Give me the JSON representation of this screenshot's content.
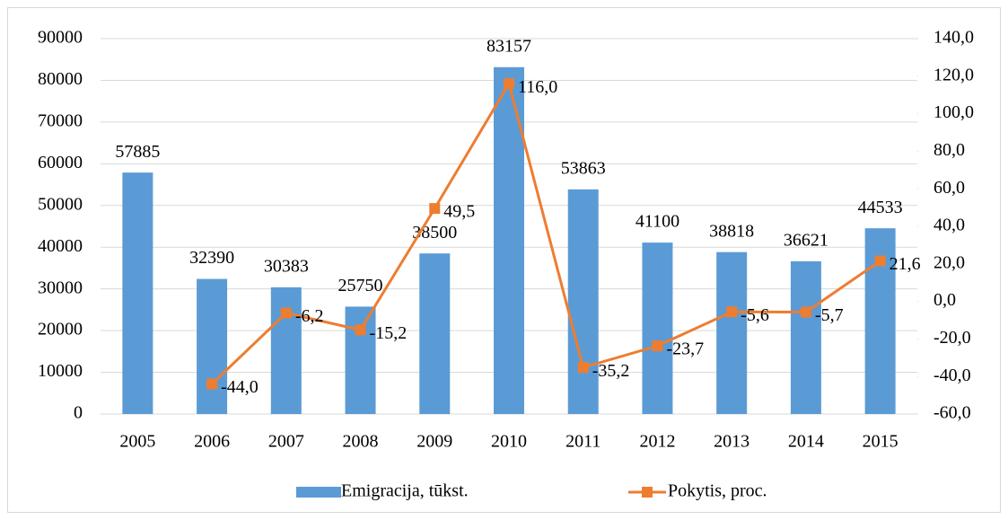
{
  "chart_data": {
    "type": "bar_line",
    "categories": [
      "2005",
      "2006",
      "2007",
      "2008",
      "2009",
      "2010",
      "2011",
      "2012",
      "2013",
      "2014",
      "2015"
    ],
    "series": [
      {
        "name": "Emigracija, tūkst.",
        "type": "bar",
        "color": "#5b9bd5",
        "values": [
          57885,
          32390,
          30383,
          25750,
          38500,
          83157,
          53863,
          41100,
          38818,
          36621,
          44533
        ]
      },
      {
        "name": "Pokytis, proc.",
        "type": "line",
        "axis": "y2",
        "color": "#ed7d31",
        "values": [
          null,
          -44.0,
          -6.2,
          -15.2,
          49.5,
          116.0,
          -35.2,
          -23.7,
          -5.6,
          -5.7,
          21.6
        ],
        "value_labels": [
          null,
          "-44,0",
          "-6,2",
          "-15,2",
          "49,5",
          "116,0",
          "-35,2",
          "-23,7",
          "-5,6",
          "-5,7",
          "21,6"
        ]
      }
    ],
    "ylim": [
      0,
      90000
    ],
    "yticks": [
      0,
      10000,
      20000,
      30000,
      40000,
      50000,
      60000,
      70000,
      80000,
      90000
    ],
    "y2lim": [
      -60,
      140
    ],
    "y2ticks": [
      {
        "value": -60,
        "label": "-60,0"
      },
      {
        "value": -40,
        "label": "-40,0"
      },
      {
        "value": -20,
        "label": "-20,0"
      },
      {
        "value": 0,
        "label": "0,0"
      },
      {
        "value": 20,
        "label": "20,0"
      },
      {
        "value": 40,
        "label": "40,0"
      },
      {
        "value": 60,
        "label": "60,0"
      },
      {
        "value": 80,
        "label": "80,0"
      },
      {
        "value": 100,
        "label": "100,0"
      },
      {
        "value": 120,
        "label": "120,0"
      },
      {
        "value": 140,
        "label": "140,0"
      }
    ],
    "grid": true,
    "legend": "bottom"
  }
}
